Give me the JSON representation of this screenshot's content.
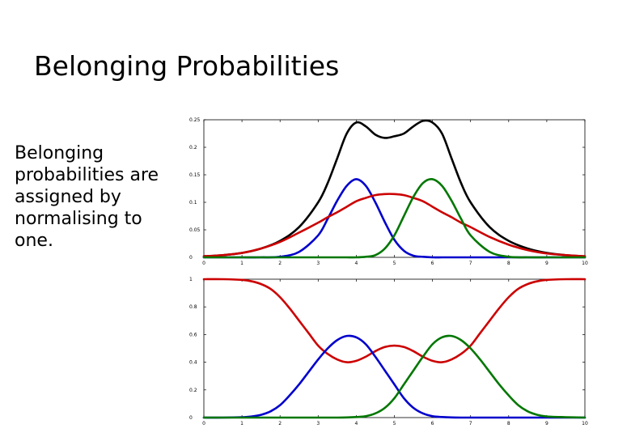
{
  "slide": {
    "title": "Belonging Probabilities",
    "body": "Belonging probabilities are assigned by normalising to one."
  },
  "chart_data": [
    {
      "type": "line",
      "title": "",
      "xlabel": "",
      "ylabel": "",
      "xlim": [
        0,
        10
      ],
      "ylim": [
        0,
        0.25
      ],
      "xticks": [
        0,
        1,
        2,
        3,
        4,
        5,
        6,
        7,
        8,
        9,
        10
      ],
      "yticks": [
        0,
        0.05,
        0.1,
        0.15,
        0.2,
        0.25
      ],
      "ytick_labels": [
        "0",
        "0.05",
        "0.1",
        "0.15",
        "0.2",
        "0.25"
      ],
      "grid": false,
      "x": [
        0,
        0.5,
        1,
        1.5,
        2,
        2.5,
        3,
        3.25,
        3.5,
        3.75,
        4,
        4.25,
        4.5,
        4.75,
        5,
        5.25,
        5.5,
        5.75,
        6,
        6.25,
        6.5,
        6.75,
        7,
        7.5,
        8,
        8.5,
        9,
        9.5,
        10
      ],
      "series": [
        {
          "color": "#000000",
          "values": [
            0.002,
            0.004,
            0.008,
            0.016,
            0.03,
            0.055,
            0.1,
            0.135,
            0.18,
            0.225,
            0.245,
            0.238,
            0.223,
            0.217,
            0.22,
            0.225,
            0.238,
            0.248,
            0.245,
            0.225,
            0.18,
            0.135,
            0.1,
            0.055,
            0.03,
            0.016,
            0.008,
            0.004,
            0.002
          ]
        },
        {
          "color": "#0000cc",
          "values": [
            0,
            0,
            0,
            0,
            0.001,
            0.01,
            0.04,
            0.07,
            0.103,
            0.13,
            0.142,
            0.13,
            0.1,
            0.064,
            0.032,
            0.012,
            0.003,
            0.001,
            0,
            0,
            0,
            0,
            0,
            0,
            0,
            0,
            0,
            0,
            0
          ]
        },
        {
          "color": "#cc0000",
          "values": [
            0.002,
            0.004,
            0.008,
            0.016,
            0.028,
            0.045,
            0.063,
            0.073,
            0.082,
            0.092,
            0.102,
            0.108,
            0.113,
            0.115,
            0.115,
            0.113,
            0.108,
            0.102,
            0.092,
            0.082,
            0.073,
            0.063,
            0.055,
            0.037,
            0.023,
            0.013,
            0.007,
            0.004,
            0.002
          ]
        },
        {
          "color": "#007700",
          "values": [
            0,
            0,
            0,
            0,
            0,
            0,
            0,
            0,
            0,
            0,
            0,
            0.001,
            0.004,
            0.016,
            0.04,
            0.075,
            0.11,
            0.135,
            0.142,
            0.13,
            0.103,
            0.07,
            0.04,
            0.01,
            0.001,
            0,
            0,
            0,
            0
          ]
        }
      ]
    },
    {
      "type": "line",
      "title": "",
      "xlabel": "",
      "ylabel": "",
      "xlim": [
        0,
        10
      ],
      "ylim": [
        0,
        1
      ],
      "xticks": [
        0,
        1,
        2,
        3,
        4,
        5,
        6,
        7,
        8,
        9,
        10
      ],
      "yticks": [
        0,
        0.2,
        0.4,
        0.6,
        0.8,
        1
      ],
      "ytick_labels": [
        "0",
        "0.2",
        "0.4",
        "0.6",
        "0.8",
        "1"
      ],
      "grid": false,
      "x": [
        0,
        0.5,
        1,
        1.25,
        1.5,
        1.75,
        2,
        2.25,
        2.5,
        2.75,
        3,
        3.25,
        3.5,
        3.75,
        4,
        4.25,
        4.5,
        4.75,
        5,
        5.25,
        5.5,
        5.75,
        6,
        6.25,
        6.5,
        6.75,
        7,
        7.25,
        7.5,
        7.75,
        8,
        8.25,
        8.5,
        8.75,
        9,
        9.5,
        10
      ],
      "series": [
        {
          "color": "#cc0000",
          "values": [
            1,
            1,
            0.995,
            0.985,
            0.965,
            0.93,
            0.87,
            0.79,
            0.7,
            0.61,
            0.52,
            0.46,
            0.42,
            0.4,
            0.41,
            0.44,
            0.48,
            0.51,
            0.52,
            0.51,
            0.48,
            0.44,
            0.41,
            0.4,
            0.42,
            0.46,
            0.52,
            0.61,
            0.7,
            0.79,
            0.87,
            0.93,
            0.965,
            0.985,
            0.995,
            1,
            1
          ]
        },
        {
          "color": "#0000cc",
          "values": [
            0,
            0,
            0.003,
            0.008,
            0.02,
            0.045,
            0.09,
            0.16,
            0.24,
            0.33,
            0.42,
            0.5,
            0.56,
            0.59,
            0.58,
            0.53,
            0.44,
            0.34,
            0.24,
            0.14,
            0.07,
            0.03,
            0.01,
            0.004,
            0.001,
            0,
            0,
            0,
            0,
            0,
            0,
            0,
            0,
            0,
            0,
            0,
            0
          ]
        },
        {
          "color": "#007700",
          "values": [
            0,
            0,
            0,
            0,
            0,
            0,
            0,
            0,
            0,
            0,
            0,
            0,
            0,
            0.001,
            0.004,
            0.01,
            0.03,
            0.07,
            0.14,
            0.24,
            0.34,
            0.44,
            0.53,
            0.58,
            0.59,
            0.56,
            0.5,
            0.42,
            0.33,
            0.24,
            0.16,
            0.09,
            0.045,
            0.02,
            0.008,
            0.003,
            0
          ]
        }
      ]
    }
  ]
}
